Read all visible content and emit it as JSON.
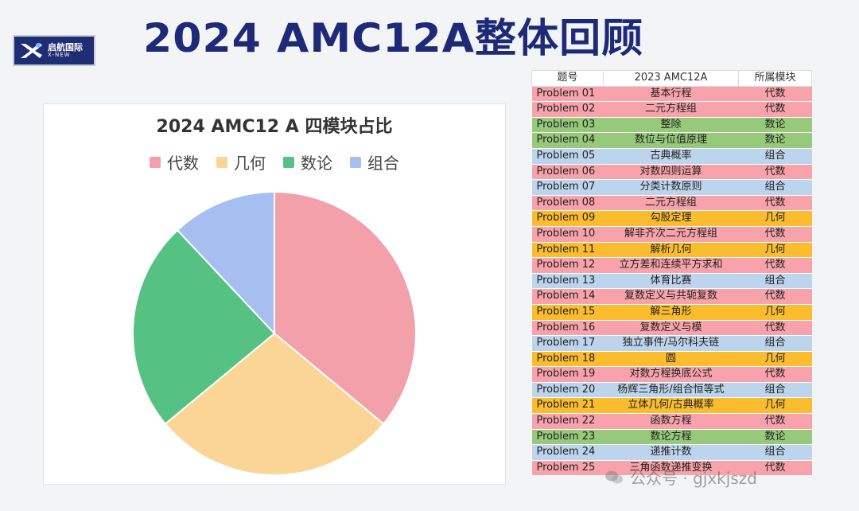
{
  "header": {
    "title": "2024 AMC12A整体回顾",
    "logo": {
      "text": "启航国际",
      "sub": "X-NEW"
    }
  },
  "colors": {
    "代数": "#f2a0aa",
    "几何": "#fbd596",
    "数论": "#55c283",
    "组合": "#a6bff0",
    "row_代数": "#f8a3ab",
    "row_几何": "#fbbd2e",
    "row_数论": "#96c97a",
    "row_组合": "#bcd4ec",
    "title_color": "#1e2a78"
  },
  "chart_data": {
    "type": "pie",
    "title": "2024 AMC12 A 四模块占比",
    "legend_position": "top",
    "categories": [
      "代数",
      "几何",
      "数论",
      "组合"
    ],
    "values": [
      9,
      7,
      6,
      3
    ]
  },
  "table": {
    "headers": [
      "题号",
      "2023 AMC12A",
      "所属模块"
    ],
    "rows": [
      [
        "Problem 01",
        "基本行程",
        "代数"
      ],
      [
        "Problem 02",
        "二元方程组",
        "代数"
      ],
      [
        "Problem 03",
        "整除",
        "数论"
      ],
      [
        "Problem 04",
        "数位与位值原理",
        "数论"
      ],
      [
        "Problem 05",
        "古典概率",
        "组合"
      ],
      [
        "Problem 06",
        "对数四则运算",
        "代数"
      ],
      [
        "Problem 07",
        "分类计数原则",
        "组合"
      ],
      [
        "Problem 08",
        "二元方程组",
        "代数"
      ],
      [
        "Problem 09",
        "勾股定理",
        "几何"
      ],
      [
        "Problem 10",
        "解非齐次二元方程组",
        "代数"
      ],
      [
        "Problem 11",
        "解析几何",
        "几何"
      ],
      [
        "Problem 12",
        "立方差和连续平方求和",
        "代数"
      ],
      [
        "Problem 13",
        "体育比赛",
        "组合"
      ],
      [
        "Problem 14",
        "复数定义与共轭复数",
        "代数"
      ],
      [
        "Problem 15",
        "解三角形",
        "几何"
      ],
      [
        "Problem 16",
        "复数定义与模",
        "代数"
      ],
      [
        "Problem 17",
        "独立事件/马尔科夫链",
        "组合"
      ],
      [
        "Problem 18",
        "圆",
        "几何"
      ],
      [
        "Problem 19",
        "对数方程换底公式",
        "代数"
      ],
      [
        "Problem 20",
        "杨辉三角形/组合恒等式",
        "组合"
      ],
      [
        "Problem 21",
        "立体几何/古典概率",
        "几何"
      ],
      [
        "Problem 22",
        "函数方程",
        "代数"
      ],
      [
        "Problem 23",
        "数论方程",
        "数论"
      ],
      [
        "Problem 24",
        "递推计数",
        "组合"
      ],
      [
        "Problem 25",
        "三角函数递推变换",
        "代数"
      ]
    ]
  },
  "watermark": {
    "text": "公众号 · gjxkjszd"
  }
}
